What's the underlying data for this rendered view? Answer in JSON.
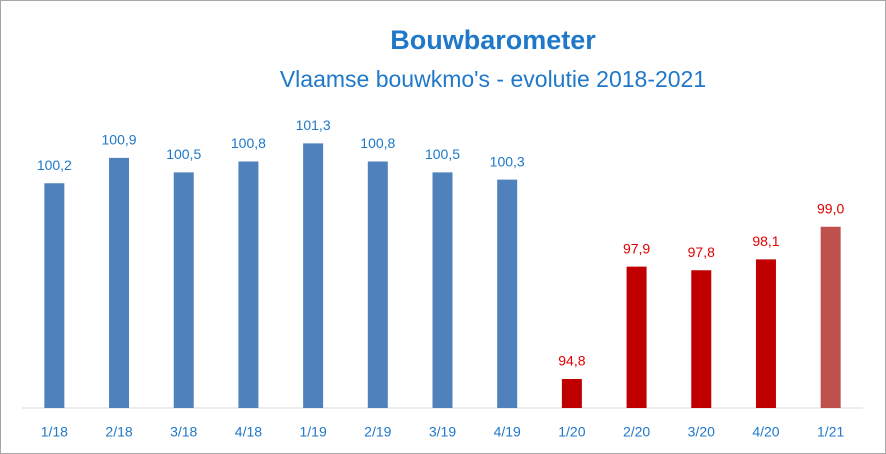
{
  "chart_data": {
    "type": "bar",
    "title": "Bouwbarometer",
    "subtitle": "Vlaamse bouwkmo's - evolutie 2018-2021",
    "categories": [
      "1/18",
      "2/18",
      "3/18",
      "4/18",
      "1/19",
      "2/19",
      "3/19",
      "4/19",
      "1/20",
      "2/20",
      "3/20",
      "4/20",
      "1/21"
    ],
    "values": [
      100.2,
      100.9,
      100.5,
      100.8,
      101.3,
      100.8,
      100.5,
      100.3,
      94.8,
      97.9,
      97.8,
      98.1,
      99.0
    ],
    "value_labels": [
      "100,2",
      "100,9",
      "100,5",
      "100,8",
      "101,3",
      "100,8",
      "100,5",
      "100,3",
      "94,8",
      "97,9",
      "97,8",
      "98,1",
      "99,0"
    ],
    "colors": [
      "#4f81bd",
      "#4f81bd",
      "#4f81bd",
      "#4f81bd",
      "#4f81bd",
      "#4f81bd",
      "#4f81bd",
      "#4f81bd",
      "#c00000",
      "#c00000",
      "#c00000",
      "#c00000",
      "#c0504d"
    ],
    "label_colors": [
      "#1f78c8",
      "#1f78c8",
      "#1f78c8",
      "#1f78c8",
      "#1f78c8",
      "#1f78c8",
      "#1f78c8",
      "#1f78c8",
      "#e00000",
      "#e00000",
      "#e00000",
      "#e00000",
      "#e00000"
    ],
    "ylim": [
      94,
      102
    ]
  }
}
